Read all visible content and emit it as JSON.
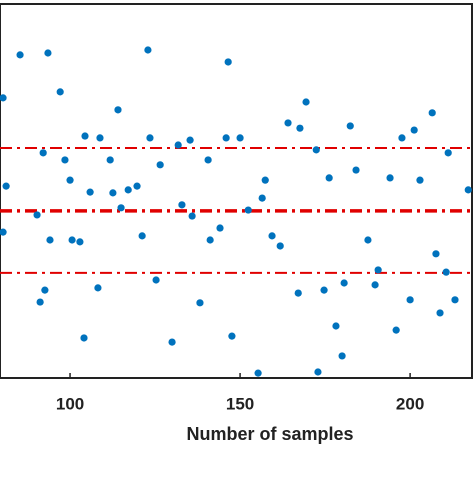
{
  "chart_data": {
    "type": "scatter",
    "xlabel": "Number of samples",
    "xlim": [
      79.4,
      218.2
    ],
    "xticks": [
      100,
      150,
      200
    ],
    "ylim": [
      0,
      100
    ],
    "color": "#0072bd",
    "x": [
      85.3,
      80.3,
      81.2,
      80.3,
      93.5,
      97.1,
      92.1,
      90.3,
      94.1,
      91.2,
      92.6,
      98.5,
      100,
      100.6,
      102.9,
      104.4,
      104.1,
      105.9,
      108.2,
      108.8,
      112.6,
      114.1,
      115,
      117.1,
      119.7,
      122.9,
      125.3,
      126.5,
      123.5,
      130,
      131.8,
      132.9,
      135.3,
      138.2,
      140.6,
      141.2,
      144.1,
      146.5,
      147.6,
      145.9,
      150,
      152.4,
      155.3,
      157.4,
      159.4,
      161.8,
      164.1,
      167.1,
      167.6,
      169.4,
      172.4,
      172.9,
      174.7,
      176.2,
      178.2,
      180,
      180.6,
      182.4,
      184.1,
      187.6,
      189.7,
      190.6,
      194.1,
      195.9,
      197.6,
      200,
      201.2,
      202.9,
      206.5,
      207.6,
      208.8,
      210.6,
      211.2,
      213.2,
      217.1,
      111.8,
      121.2,
      156.5,
      135.9
    ],
    "values": [
      86.4,
      74.9,
      51.3,
      39.0,
      86.9,
      76.5,
      60.2,
      43.6,
      36.9,
      20.3,
      23.5,
      58.3,
      52.9,
      36.9,
      36.4,
      64.7,
      10.7,
      49.7,
      24.1,
      64.2,
      49.5,
      71.7,
      45.5,
      50.3,
      51.3,
      87.7,
      26.2,
      57.0,
      64.2,
      9.6,
      62.3,
      46.3,
      63.6,
      20.1,
      58.3,
      36.9,
      40.1,
      84.5,
      11.2,
      64.2,
      64.2,
      44.9,
      1.3,
      52.9,
      38.0,
      35.3,
      68.2,
      22.7,
      66.8,
      73.8,
      61.0,
      1.6,
      23.5,
      53.5,
      13.9,
      5.9,
      25.4,
      67.4,
      55.6,
      36.9,
      24.9,
      28.9,
      53.5,
      12.8,
      64.2,
      20.9,
      66.3,
      52.9,
      70.9,
      33.2,
      17.4,
      28.3,
      60.2,
      20.9,
      50.3,
      58.3,
      38.0,
      48.1,
      43.3
    ],
    "reference_lines": [
      {
        "value": 61.5,
        "color": "#e00000",
        "width": 2
      },
      {
        "value": 44.7,
        "color": "#e00000",
        "width": 3.5
      },
      {
        "value": 28.1,
        "color": "#e00000",
        "width": 2
      }
    ]
  }
}
